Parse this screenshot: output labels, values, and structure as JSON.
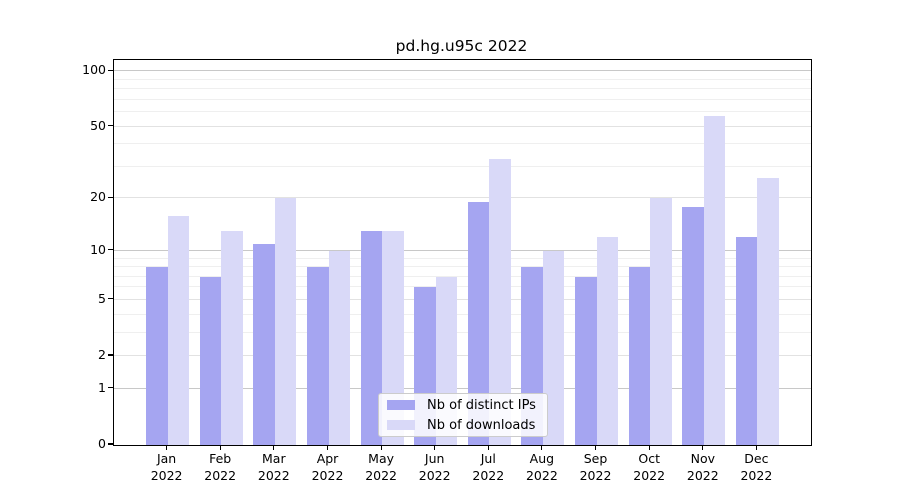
{
  "chart_data": {
    "type": "bar",
    "title": "pd.hg.u95c 2022",
    "categories": [
      "Jan",
      "Feb",
      "Mar",
      "Apr",
      "May",
      "Jun",
      "Jul",
      "Aug",
      "Sep",
      "Oct",
      "Nov",
      "Dec"
    ],
    "year_label": "2022",
    "series": [
      {
        "name": "Nb of distinct IPs",
        "color": "#a5a5f1",
        "values": [
          8,
          7,
          11,
          8,
          13,
          6,
          19,
          8,
          7,
          8,
          18,
          12
        ]
      },
      {
        "name": "Nb of downloads",
        "color": "#d9d9f8",
        "values": [
          16,
          13,
          20,
          10,
          13,
          7,
          33,
          10,
          12,
          20,
          57,
          26
        ]
      }
    ],
    "yscale": "log10(value+1)",
    "yticks": [
      0,
      1,
      2,
      5,
      10,
      20,
      50,
      100
    ],
    "decade_gridlines": [
      1,
      10,
      100
    ],
    "minor_gridlines": [
      3,
      4,
      6,
      7,
      8,
      9,
      30,
      40,
      60,
      70,
      80,
      90
    ],
    "ylim": [
      0,
      115
    ],
    "grid": true,
    "legend_position": "lower-center"
  }
}
